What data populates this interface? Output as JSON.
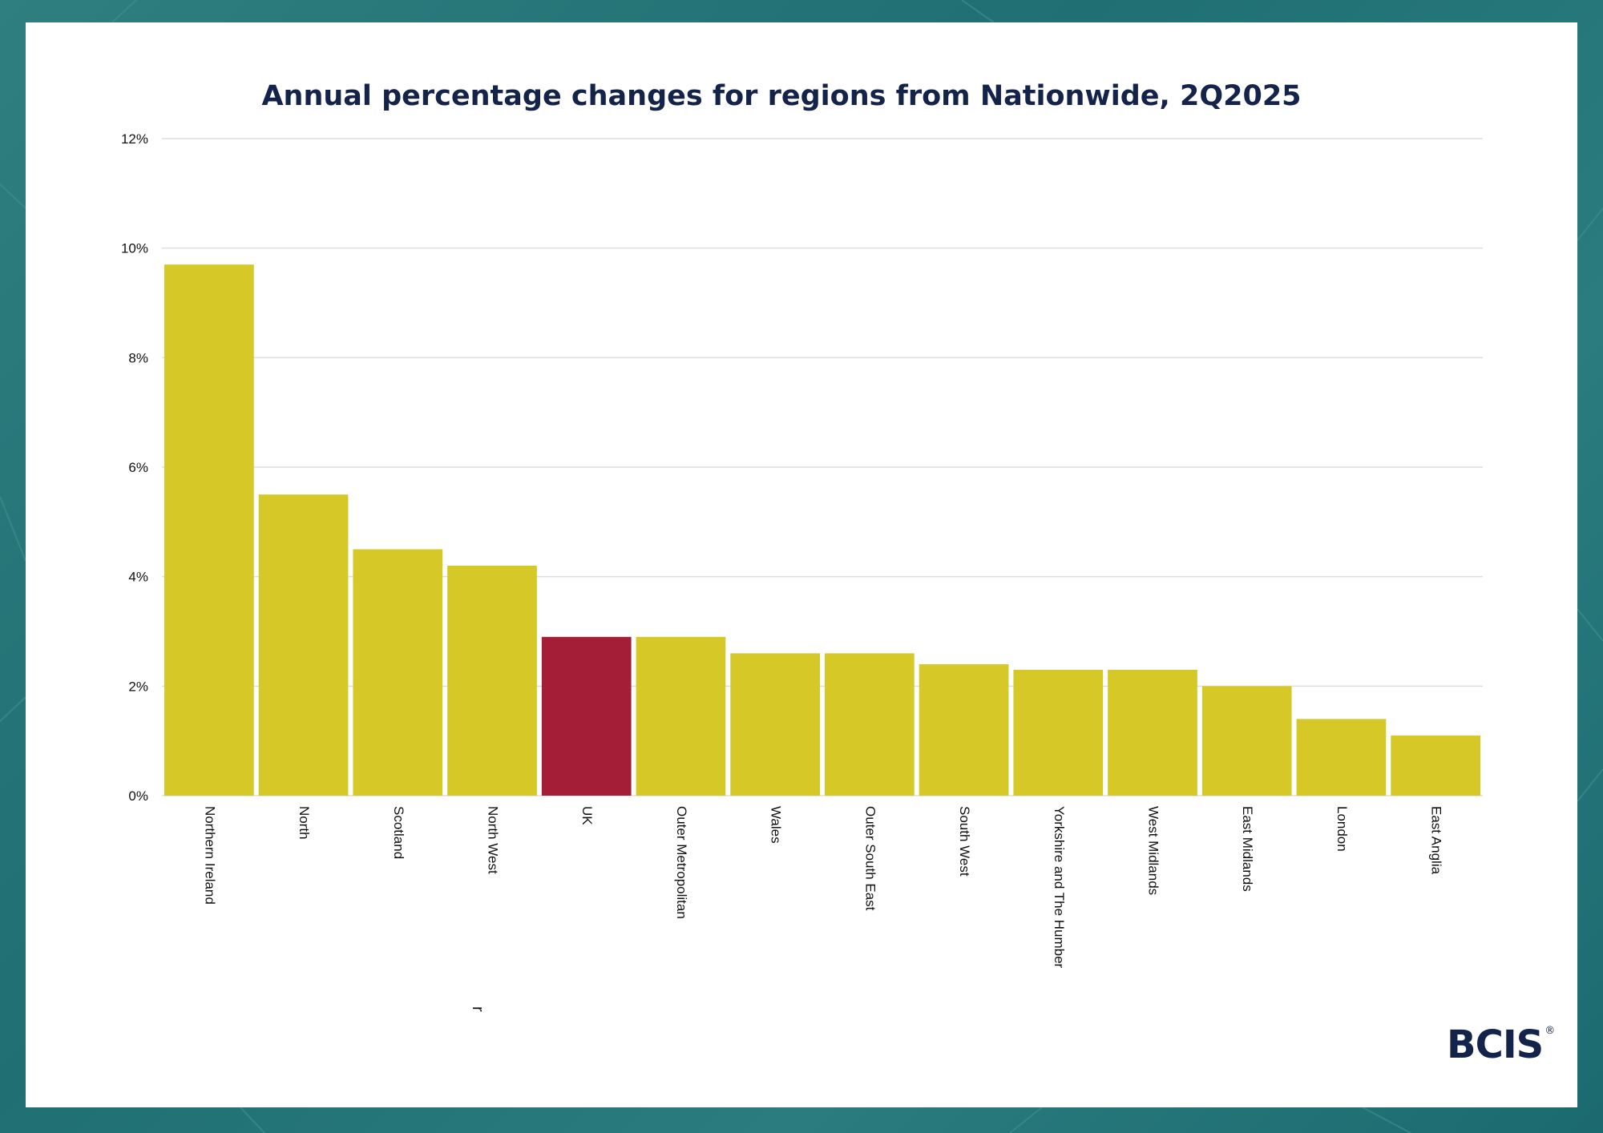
{
  "chart_data": {
    "type": "bar",
    "title": "Annual percentage changes for regions from Nationwide, 2Q2025",
    "xlabel": "",
    "ylabel": "",
    "ylim": [
      0,
      12
    ],
    "yticks": [
      "0%",
      "2%",
      "4%",
      "6%",
      "8%",
      "10%",
      "12%"
    ],
    "grid": true,
    "categories": [
      "Northern Ireland",
      "North",
      "Scotland",
      "North West",
      "UK",
      "Outer Metropolitan",
      "Wales",
      "Outer South East",
      "South West",
      "Yorkshire and The Humber",
      "West Midlands",
      "East Midlands",
      "London",
      "East Anglia"
    ],
    "values": [
      9.7,
      5.5,
      4.5,
      4.2,
      2.9,
      2.9,
      2.6,
      2.6,
      2.4,
      2.3,
      2.3,
      2.0,
      1.4,
      1.1
    ],
    "highlight_category": "UK",
    "colors": {
      "bar": "#d6c927",
      "highlight": "#a41e38",
      "grid": "#dedede",
      "title": "#14234a"
    }
  },
  "stray_mark": "r",
  "logo": {
    "text": "BCIS",
    "mark": "®"
  }
}
